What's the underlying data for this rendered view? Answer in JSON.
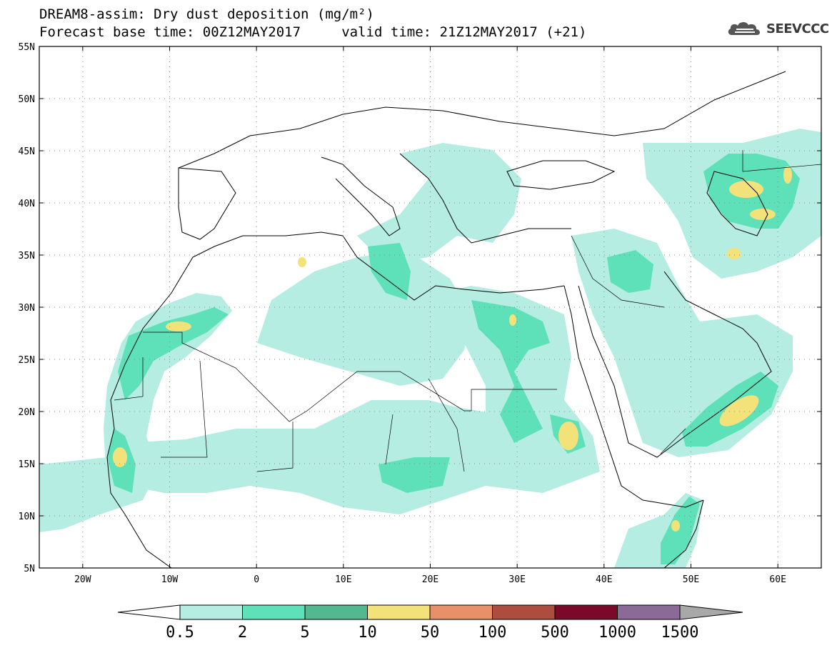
{
  "title": {
    "line1": "DREAM8-assim: Dry dust deposition (mg/m²)",
    "line2": "Forecast base time: 00Z12MAY2017     valid time: 21Z12MAY2017 (+21)"
  },
  "logo": {
    "text": "SEEVCCC",
    "icon": "cloud-icon"
  },
  "map": {
    "lon_range": [
      -25,
      65
    ],
    "lat_range": [
      5,
      55
    ],
    "lon_ticks": [
      {
        "value": -20,
        "label": "20W"
      },
      {
        "value": -10,
        "label": "10W"
      },
      {
        "value": 0,
        "label": "0"
      },
      {
        "value": 10,
        "label": "10E"
      },
      {
        "value": 20,
        "label": "20E"
      },
      {
        "value": 30,
        "label": "30E"
      },
      {
        "value": 40,
        "label": "40E"
      },
      {
        "value": 50,
        "label": "50E"
      },
      {
        "value": 60,
        "label": "60E"
      }
    ],
    "lat_ticks": [
      {
        "value": 55,
        "label": "55N"
      },
      {
        "value": 50,
        "label": "50N"
      },
      {
        "value": 45,
        "label": "45N"
      },
      {
        "value": 40,
        "label": "40N"
      },
      {
        "value": 35,
        "label": "35N"
      },
      {
        "value": 30,
        "label": "30N"
      },
      {
        "value": 25,
        "label": "25N"
      },
      {
        "value": 20,
        "label": "20N"
      },
      {
        "value": 15,
        "label": "15N"
      },
      {
        "value": 10,
        "label": "10N"
      },
      {
        "value": 5,
        "label": "5N"
      }
    ],
    "grid": "dotted"
  },
  "colorbar": {
    "labels": [
      "0.5",
      "2",
      "5",
      "10",
      "50",
      "100",
      "500",
      "1000",
      "1500"
    ],
    "colors": [
      "#b5ede2",
      "#5ee0b8",
      "#52b88e",
      "#f3e27a",
      "#e98f69",
      "#ad4c3f",
      "#7b0a2a",
      "#8c6a98",
      "#a8a8a8"
    ],
    "under_color": "#ffffff"
  }
}
